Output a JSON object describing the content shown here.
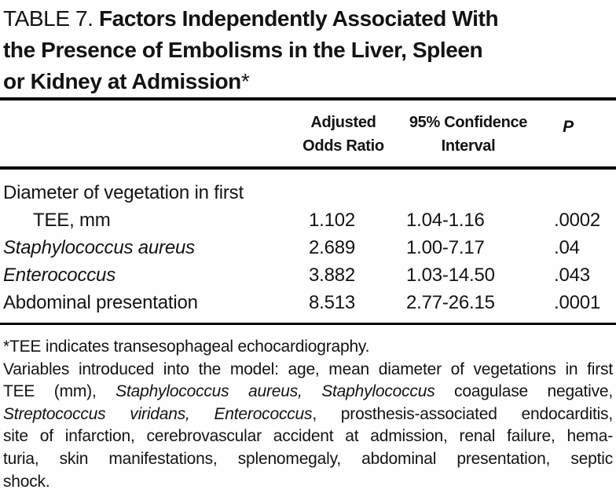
{
  "palette": {
    "ink": "#131313",
    "rule": "#000000",
    "background": "#fefefe"
  },
  "title": {
    "label_prefix": "TABLE 7. ",
    "line1_rest": "Factors Independently Associated With",
    "line2": "the Presence of Embolisms in the Liver, Spleen",
    "line3": "or Kidney at Admission",
    "asterisk": "*"
  },
  "header": {
    "or_line1": "Adjusted",
    "or_line2": "Odds Ratio",
    "ci_line1": "95% Confidence",
    "ci_line2": "Interval",
    "p": "P"
  },
  "table": {
    "rows": [
      {
        "label_line1": "Diameter of vegetation in first",
        "label_line2": "TEE, mm",
        "or": "1.102",
        "ci": "1.04-1.16",
        "p": ".0002"
      },
      {
        "label": "Staphylococcus aureus",
        "or": "2.689",
        "ci": "1.00-7.17",
        "p": ".04"
      },
      {
        "label": "Enterococcus",
        "or": "3.882",
        "ci": "1.03-14.50",
        "p": ".043"
      },
      {
        "label": "Abdominal presentation",
        "or": "8.513",
        "ci": "2.77-26.15",
        "p": ".0001"
      }
    ]
  },
  "footnotes": {
    "note1": "*TEE indicates transesophageal echocardiography.",
    "para_line1": "Variables introduced into the model: age, mean diameter of vegetations in first",
    "para_line2_a": "TEE (mm), ",
    "para_line2_b": "Staphylococcus aureus, Staphylococcus",
    "para_line2_c": " coagulase negative,",
    "para_line3_a": "Streptococcus viridans, Enterococcus",
    "para_line3_b": ", prosthesis-associated endocarditis,",
    "para_line4": "site of infarction, cerebrovascular accident at admission, renal failure, hema-",
    "para_line5": "turia, skin manifestations, splenomegaly, abdominal presentation, septic",
    "para_line6": "shock."
  }
}
